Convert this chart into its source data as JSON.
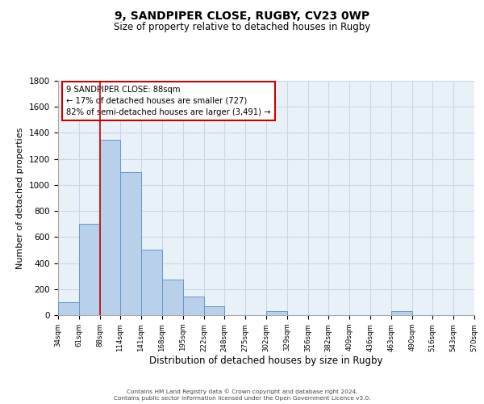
{
  "title": "9, SANDPIPER CLOSE, RUGBY, CV23 0WP",
  "subtitle": "Size of property relative to detached houses in Rugby",
  "xlabel": "Distribution of detached houses by size in Rugby",
  "ylabel": "Number of detached properties",
  "bin_labels": [
    "34sqm",
    "61sqm",
    "88sqm",
    "114sqm",
    "141sqm",
    "168sqm",
    "195sqm",
    "222sqm",
    "248sqm",
    "275sqm",
    "302sqm",
    "329sqm",
    "356sqm",
    "382sqm",
    "409sqm",
    "436sqm",
    "463sqm",
    "490sqm",
    "516sqm",
    "543sqm",
    "570sqm"
  ],
  "bin_edges": [
    34,
    61,
    88,
    114,
    141,
    168,
    195,
    222,
    248,
    275,
    302,
    329,
    356,
    382,
    409,
    436,
    463,
    490,
    516,
    543,
    570
  ],
  "bar_heights": [
    100,
    700,
    1350,
    1100,
    500,
    275,
    140,
    70,
    0,
    0,
    30,
    0,
    0,
    0,
    0,
    0,
    30,
    0,
    0,
    0
  ],
  "bar_color": "#b8d0ea",
  "bar_edge_color": "#6699cc",
  "property_size": 88,
  "vline_color": "#cc0000",
  "annotation_box_edge_color": "#cc0000",
  "annotation_line1": "9 SANDPIPER CLOSE: 88sqm",
  "annotation_line2": "← 17% of detached houses are smaller (727)",
  "annotation_line3": "82% of semi-detached houses are larger (3,491) →",
  "ylim": [
    0,
    1800
  ],
  "yticks": [
    0,
    200,
    400,
    600,
    800,
    1000,
    1200,
    1400,
    1600,
    1800
  ],
  "grid_color": "#c8d8e8",
  "bg_color": "#e8f0f8",
  "footer_line1": "Contains HM Land Registry data © Crown copyright and database right 2024.",
  "footer_line2": "Contains public sector information licensed under the Open Government Licence v3.0."
}
